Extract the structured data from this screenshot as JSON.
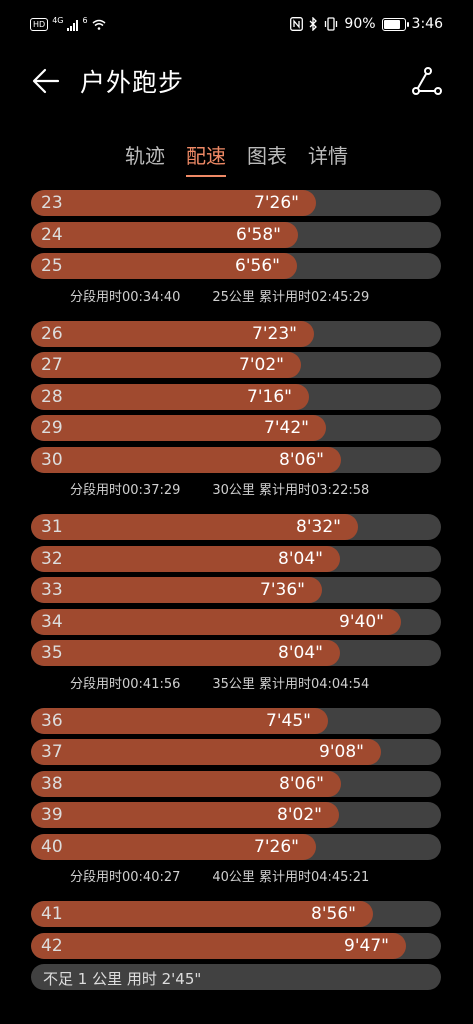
{
  "status_bar": {
    "hd": "HD",
    "network_top": "4G",
    "network_bottom": "6",
    "battery": "90%",
    "time": "3:46",
    "battery_level": 0.9
  },
  "header": {
    "title": "户外跑步"
  },
  "tabs": [
    {
      "label": "轨迹",
      "active": false
    },
    {
      "label": "配速",
      "active": true
    },
    {
      "label": "图表",
      "active": false
    },
    {
      "label": "详情",
      "active": false
    }
  ],
  "colors": {
    "accent": "#ef8a66",
    "bar_fill": "#a04a2f",
    "bar_track": "#414141"
  },
  "scale_max_seconds": 642,
  "groups": [
    {
      "rows": [
        {
          "km": "23",
          "pace": "7'26\"",
          "seconds": 446
        },
        {
          "km": "24",
          "pace": "6'58\"",
          "seconds": 418
        },
        {
          "km": "25",
          "pace": "6'56\"",
          "seconds": 416
        }
      ],
      "split": {
        "segment": "分段用时00:34:40",
        "km": "25公里",
        "total": "累计用时02:45:29"
      }
    },
    {
      "rows": [
        {
          "km": "26",
          "pace": "7'23\"",
          "seconds": 443
        },
        {
          "km": "27",
          "pace": "7'02\"",
          "seconds": 422
        },
        {
          "km": "28",
          "pace": "7'16\"",
          "seconds": 436
        },
        {
          "km": "29",
          "pace": "7'42\"",
          "seconds": 462
        },
        {
          "km": "30",
          "pace": "8'06\"",
          "seconds": 486
        }
      ],
      "split": {
        "segment": "分段用时00:37:29",
        "km": "30公里",
        "total": "累计用时03:22:58"
      }
    },
    {
      "rows": [
        {
          "km": "31",
          "pace": "8'32\"",
          "seconds": 512
        },
        {
          "km": "32",
          "pace": "8'04\"",
          "seconds": 484
        },
        {
          "km": "33",
          "pace": "7'36\"",
          "seconds": 456
        },
        {
          "km": "34",
          "pace": "9'40\"",
          "seconds": 580
        },
        {
          "km": "35",
          "pace": "8'04\"",
          "seconds": 484
        }
      ],
      "split": {
        "segment": "分段用时00:41:56",
        "km": "35公里",
        "total": "累计用时04:04:54"
      }
    },
    {
      "rows": [
        {
          "km": "36",
          "pace": "7'45\"",
          "seconds": 465
        },
        {
          "km": "37",
          "pace": "9'08\"",
          "seconds": 548
        },
        {
          "km": "38",
          "pace": "8'06\"",
          "seconds": 486
        },
        {
          "km": "39",
          "pace": "8'02\"",
          "seconds": 482
        },
        {
          "km": "40",
          "pace": "7'26\"",
          "seconds": 446
        }
      ],
      "split": {
        "segment": "分段用时00:40:27",
        "km": "40公里",
        "total": "累计用时04:45:21"
      }
    },
    {
      "rows": [
        {
          "km": "41",
          "pace": "8'56\"",
          "seconds": 536
        },
        {
          "km": "42",
          "pace": "9'47\"",
          "seconds": 587
        }
      ]
    }
  ],
  "remainder": "不足 1 公里 用时 2'45\""
}
